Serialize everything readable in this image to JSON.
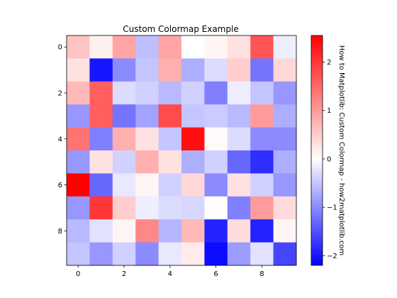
{
  "chart_data": {
    "type": "heatmap",
    "title": "Custom Colormap Example",
    "colorbar_label": "How to Matplotlib: Custom Colormap - how2matplotlib.com",
    "colormap": [
      "#0000ff",
      "#ffffff",
      "#ff0000"
    ],
    "vmin": -2.2,
    "vmax": 2.55,
    "x_ticks": [
      0,
      2,
      4,
      6,
      8
    ],
    "y_ticks": [
      0,
      2,
      4,
      6,
      8
    ],
    "colorbar_ticks": [
      -2,
      -1,
      0,
      1,
      2
    ],
    "rows": 10,
    "cols": 10,
    "values": [
      [
        0.6,
        0.15,
        0.9,
        -0.55,
        0.9,
        0.0,
        0.1,
        0.3,
        1.7,
        -0.15
      ],
      [
        0.3,
        -2.0,
        -1.0,
        -0.5,
        0.8,
        -0.7,
        -0.3,
        0.5,
        -1.2,
        0.4
      ],
      [
        0.7,
        1.6,
        -0.3,
        -0.4,
        -0.6,
        -0.4,
        -1.1,
        -0.15,
        -0.5,
        -0.9
      ],
      [
        -0.9,
        1.6,
        -1.2,
        -0.8,
        1.8,
        -0.5,
        -0.45,
        -0.6,
        1.0,
        -0.7
      ],
      [
        1.4,
        -1.1,
        0.8,
        0.3,
        -0.5,
        2.4,
        0.05,
        -0.3,
        -1.0,
        -1.0
      ],
      [
        -0.9,
        0.3,
        -0.4,
        0.8,
        0.3,
        -0.7,
        -0.4,
        -1.3,
        -1.8,
        -0.7
      ],
      [
        2.55,
        -1.3,
        -0.2,
        0.1,
        -0.4,
        0.4,
        -1.0,
        0.3,
        -0.4,
        -0.9
      ],
      [
        -0.9,
        2.0,
        0.5,
        -0.15,
        -0.3,
        -0.35,
        0.02,
        -1.1,
        1.0,
        0.35
      ],
      [
        -0.6,
        -0.25,
        0.1,
        1.2,
        -0.65,
        0.7,
        -1.9,
        0.35,
        -1.9,
        0.1
      ],
      [
        -0.5,
        -0.9,
        -0.4,
        -1.0,
        -0.2,
        0.2,
        -2.1,
        -0.85,
        -0.25,
        -1.6
      ]
    ]
  }
}
